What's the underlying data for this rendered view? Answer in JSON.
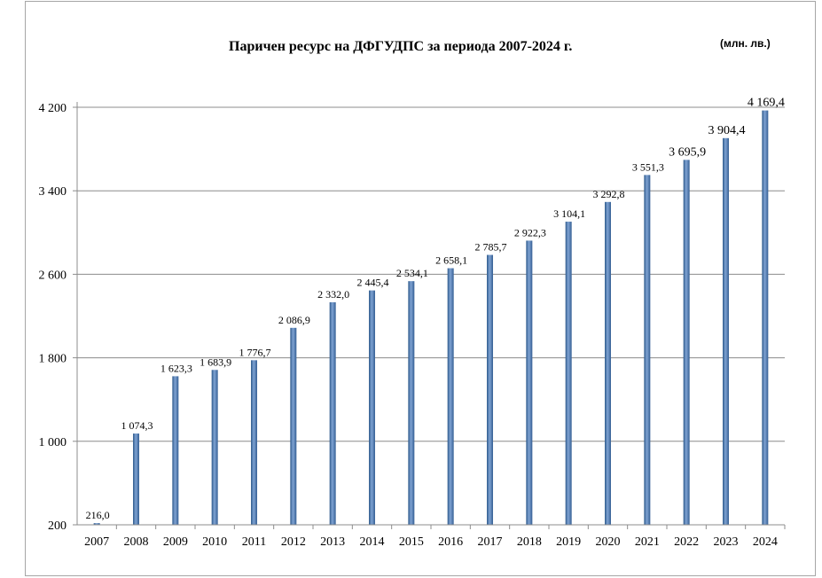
{
  "chart_data": {
    "type": "bar",
    "title": "Паричен ресурс на ДФГУДПС за периода 2007-2024 г.",
    "unit": "(млн. лв.)",
    "categories": [
      "2007",
      "2008",
      "2009",
      "2010",
      "2011",
      "2012",
      "2013",
      "2014",
      "2015",
      "2016",
      "2017",
      "2018",
      "2019",
      "2020",
      "2021",
      "2022",
      "2023",
      "2024"
    ],
    "values": [
      216.0,
      1074.3,
      1623.3,
      1683.9,
      1776.7,
      2086.9,
      2332.0,
      2445.4,
      2534.1,
      2658.1,
      2785.7,
      2922.3,
      3104.1,
      3292.8,
      3551.3,
      3695.9,
      3904.4,
      4169.4
    ],
    "value_labels": [
      "216,0",
      "1 074,3",
      "1 623,3",
      "1 683,9",
      "1 776,7",
      "2 086,9",
      "2 332,0",
      "2 445,4",
      "2 534,1",
      "2 658,1",
      "2 785,7",
      "2 922,3",
      "3 104,1",
      "3 292,8",
      "3 551,3",
      "3 695,9",
      "3 904,4",
      "4 169,4"
    ],
    "yticks": [
      200,
      1000,
      1800,
      2600,
      3400,
      4200
    ],
    "ytick_labels": [
      "200",
      "1 000",
      "1 800",
      "2 600",
      "3 400",
      "4 200"
    ],
    "ylim": [
      200,
      4200
    ],
    "grid": true,
    "bar_color": "#4f81bd"
  }
}
